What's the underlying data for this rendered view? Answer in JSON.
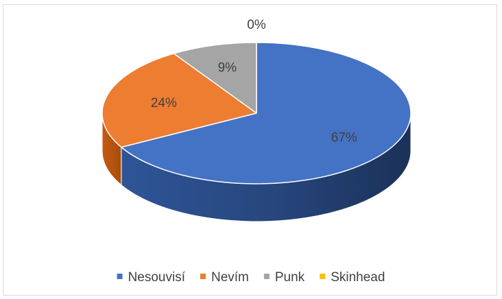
{
  "chart_data": {
    "type": "pie",
    "title": "",
    "categories": [
      "Nesouvisí",
      "Nevím",
      "Punk",
      "Skinhead"
    ],
    "values": [
      67,
      24,
      9,
      0
    ],
    "labels": [
      "67%",
      "24%",
      "9%",
      "0%"
    ],
    "colors": [
      "#4472c4",
      "#ed7d31",
      "#a5a5a5",
      "#ffc000"
    ],
    "legend_position": "bottom",
    "style": "3d"
  }
}
